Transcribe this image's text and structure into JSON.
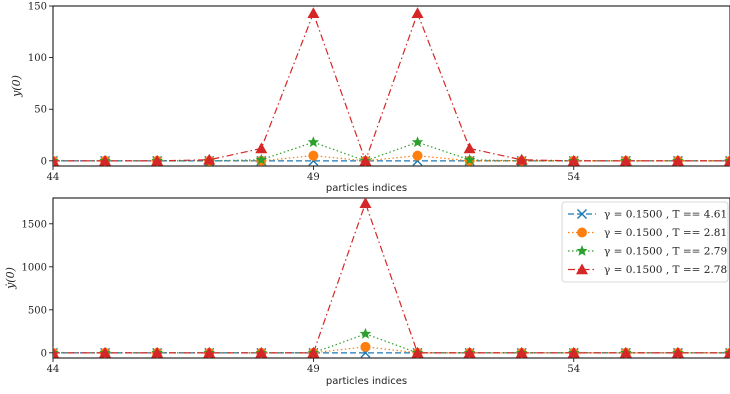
{
  "chart_data": [
    {
      "type": "line",
      "xlabel": "particles indices",
      "ylabel": "y(0)",
      "xlim": [
        44,
        57
      ],
      "ylim": [
        -5,
        150
      ],
      "xticks": [
        44,
        49,
        54
      ],
      "yticks": [
        0,
        50,
        100,
        150
      ],
      "grid": false,
      "x": [
        44,
        45,
        46,
        47,
        48,
        49,
        50,
        51,
        52,
        53,
        54,
        55,
        56,
        57
      ],
      "series": [
        {
          "name": "γ = 0.1500 , T == 4.61",
          "color": "#1f77b4",
          "linestyle": "dashed",
          "marker": "x",
          "values": [
            0,
            0,
            0,
            0,
            0,
            0,
            0,
            0,
            0,
            0,
            0,
            0,
            0,
            0
          ]
        },
        {
          "name": "γ = 0.1500 , T == 2.81",
          "color": "#ff7f0e",
          "linestyle": "dotted",
          "marker": "circle",
          "values": [
            0,
            0,
            0,
            0,
            0,
            5,
            0,
            5,
            0,
            0,
            0,
            0,
            0,
            0
          ]
        },
        {
          "name": "γ = 0.1500 , T == 2.79",
          "color": "#2ca02c",
          "linestyle": "dotted",
          "marker": "star",
          "values": [
            0,
            0,
            0,
            0,
            1,
            18,
            0,
            18,
            1,
            0,
            0,
            0,
            0,
            0
          ]
        },
        {
          "name": "γ = 0.1500 , T == 2.78",
          "color": "#d62728",
          "linestyle": "dashdot",
          "marker": "triangle",
          "values": [
            0,
            0,
            0,
            1,
            12,
            143,
            0,
            143,
            12,
            1,
            0,
            0,
            0,
            0
          ]
        }
      ]
    },
    {
      "type": "line",
      "xlabel": "particles indices",
      "ylabel": "ẏ(0)",
      "xlim": [
        44,
        57
      ],
      "ylim": [
        -60,
        1800
      ],
      "xticks": [
        44,
        49,
        54
      ],
      "yticks": [
        0,
        500,
        1000,
        1500
      ],
      "grid": false,
      "legend_position": "top-right",
      "x": [
        44,
        45,
        46,
        47,
        48,
        49,
        50,
        51,
        52,
        53,
        54,
        55,
        56,
        57
      ],
      "series": [
        {
          "name": "γ = 0.1500 , T == 4.61",
          "color": "#1f77b4",
          "linestyle": "dashed",
          "marker": "x",
          "values": [
            0,
            0,
            0,
            0,
            0,
            0,
            0,
            0,
            0,
            0,
            0,
            0,
            0,
            0
          ]
        },
        {
          "name": "γ = 0.1500 , T == 2.81",
          "color": "#ff7f0e",
          "linestyle": "dotted",
          "marker": "circle",
          "values": [
            0,
            0,
            0,
            0,
            0,
            0,
            70,
            0,
            0,
            0,
            0,
            0,
            0,
            0
          ]
        },
        {
          "name": "γ = 0.1500 , T == 2.79",
          "color": "#2ca02c",
          "linestyle": "dotted",
          "marker": "star",
          "values": [
            0,
            0,
            0,
            0,
            0,
            0,
            220,
            0,
            0,
            0,
            0,
            0,
            0,
            0
          ]
        },
        {
          "name": "γ = 0.1500 , T == 2.78",
          "color": "#d62728",
          "linestyle": "dashdot",
          "marker": "triangle",
          "values": [
            0,
            0,
            0,
            0,
            0,
            0,
            1740,
            0,
            0,
            0,
            0,
            0,
            0,
            0
          ]
        }
      ]
    }
  ]
}
